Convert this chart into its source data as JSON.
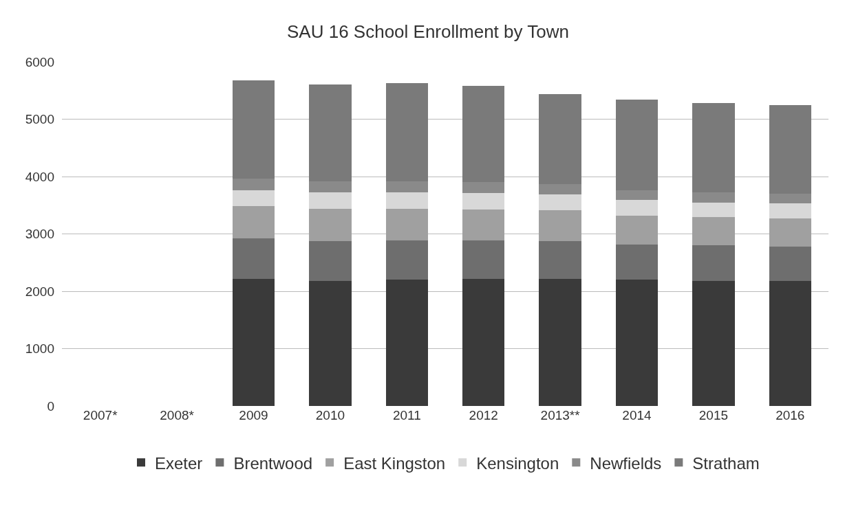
{
  "chart_data": {
    "type": "bar",
    "title": "SAU 16 School Enrollment by Town",
    "stacked": true,
    "grid": "y",
    "legend": "bottom",
    "categories": [
      "2007*",
      "2008*",
      "2009",
      "2010",
      "2011",
      "2012",
      "2013**",
      "2014",
      "2015",
      "2016"
    ],
    "ylim": [
      0,
      6000
    ],
    "yticks": [
      0,
      1000,
      2000,
      3000,
      4000,
      5000,
      6000
    ],
    "series": [
      {
        "name": "Exeter",
        "color": "#3a3a3a",
        "values": [
          null,
          null,
          2220,
          2180,
          2200,
          2220,
          2220,
          2200,
          2180,
          2180
        ]
      },
      {
        "name": "Brentwood",
        "color": "#6e6e6e",
        "values": [
          null,
          null,
          700,
          700,
          690,
          670,
          660,
          620,
          620,
          600
        ]
      },
      {
        "name": "East Kingston",
        "color": "#a0a0a0",
        "values": [
          null,
          null,
          560,
          560,
          550,
          540,
          530,
          500,
          490,
          490
        ]
      },
      {
        "name": "Kensington",
        "color": "#d8d8d8",
        "values": [
          null,
          null,
          280,
          280,
          280,
          280,
          280,
          270,
          260,
          260
        ]
      },
      {
        "name": "Newfields",
        "color": "#8a8a8a",
        "values": [
          null,
          null,
          200,
          200,
          200,
          190,
          180,
          170,
          170,
          170
        ]
      },
      {
        "name": "Stratham",
        "color": "#7a7a7a",
        "values": [
          null,
          null,
          1720,
          1680,
          1710,
          1680,
          1570,
          1580,
          1560,
          1550
        ]
      }
    ]
  }
}
